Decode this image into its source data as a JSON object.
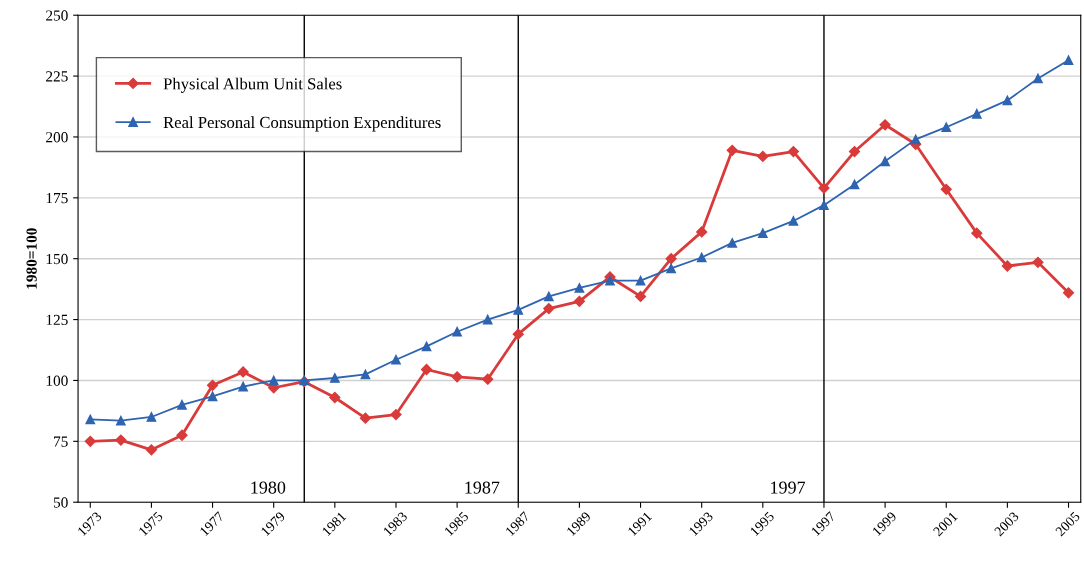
{
  "chart_data": {
    "type": "line",
    "ylabel": "1980=100",
    "x": [
      1973,
      1974,
      1975,
      1976,
      1977,
      1978,
      1979,
      1980,
      1981,
      1982,
      1983,
      1984,
      1985,
      1986,
      1987,
      1988,
      1989,
      1990,
      1991,
      1992,
      1993,
      1994,
      1995,
      1996,
      1997,
      1998,
      1999,
      2000,
      2001,
      2002,
      2003,
      2004,
      2005
    ],
    "xlim": [
      1972.6,
      2005.4
    ],
    "xticks": [
      1973,
      1975,
      1977,
      1979,
      1981,
      1983,
      1985,
      1987,
      1989,
      1991,
      1993,
      1995,
      1997,
      1999,
      2001,
      2003,
      2005
    ],
    "series": [
      {
        "name": "Physical Album Unit Sales",
        "color": "#d93a3a",
        "marker": "diamond",
        "values": [
          75,
          75.5,
          71.5,
          77.5,
          98,
          103.5,
          97,
          99.5,
          93,
          84.5,
          86,
          104.5,
          101.5,
          100.5,
          119,
          129.5,
          132.5,
          142.5,
          134.5,
          150,
          161,
          194.5,
          192,
          194,
          179,
          194,
          205,
          197,
          178.5,
          160.5,
          147,
          148.5,
          136
        ]
      },
      {
        "name": "Real Personal Consumption Expenditures",
        "color": "#2e64b0",
        "marker": "triangle",
        "values": [
          84,
          83.5,
          85,
          90,
          93.5,
          97.5,
          100,
          100,
          101,
          102.5,
          108.5,
          114,
          120,
          125,
          129,
          134.5,
          138,
          141,
          141,
          146,
          150.5,
          156.5,
          160.5,
          165.5,
          172,
          180.5,
          190,
          199,
          204,
          209.5,
          215,
          224,
          231.5
        ]
      }
    ],
    "ylim": [
      50,
      250
    ],
    "yticks": [
      50,
      75,
      100,
      125,
      150,
      175,
      200,
      225,
      250
    ],
    "grid": "y",
    "legend": "top left",
    "ref_lines": [
      {
        "axis": "x",
        "value": 1980,
        "label": "1980",
        "color": "#000000"
      },
      {
        "axis": "x",
        "value": 1987,
        "label": "1987",
        "color": "#000000"
      },
      {
        "axis": "x",
        "value": 1997,
        "label": "1997",
        "color": "#000000"
      }
    ]
  }
}
